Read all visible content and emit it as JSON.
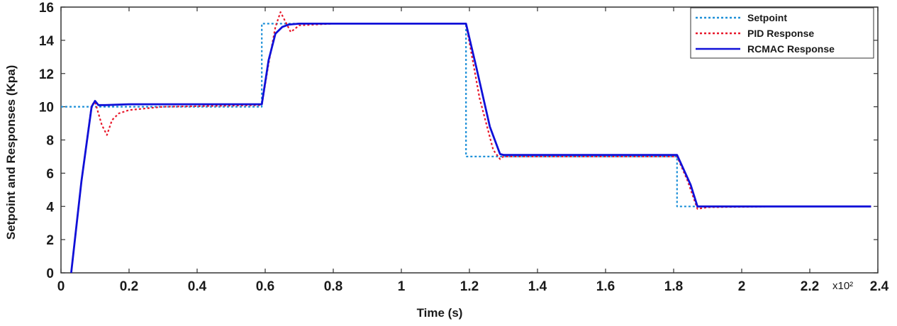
{
  "chart_data": {
    "type": "line",
    "title": "",
    "xlabel": "Time (s)",
    "ylabel": "Setpoint and Responses (Kpa)",
    "xlim": [
      0,
      2.4
    ],
    "ylim": [
      0,
      16
    ],
    "x_scale_label": "x10²",
    "x_ticks": [
      "0",
      "0.2",
      "0.4",
      "0.6",
      "0.8",
      "1",
      "1.2",
      "1.4",
      "1.6",
      "1.8",
      "2",
      "2.2",
      "2.4"
    ],
    "y_ticks": [
      "0",
      "2",
      "4",
      "6",
      "8",
      "10",
      "12",
      "14",
      "16"
    ],
    "grid": false,
    "legend_position": "top-right",
    "series": [
      {
        "name": "Setpoint",
        "color": "#1e90d8",
        "style": "dotted",
        "x": [
          0,
          0.59,
          0.59,
          1.19,
          1.19,
          1.81,
          1.81,
          2.38
        ],
        "y": [
          10,
          10,
          15,
          15,
          7,
          7,
          4,
          4
        ]
      },
      {
        "name": "PID Response",
        "color": "#e8192c",
        "style": "dotted",
        "x": [
          0.03,
          0.06,
          0.09,
          0.1,
          0.11,
          0.12,
          0.135,
          0.15,
          0.17,
          0.2,
          0.3,
          0.45,
          0.59,
          0.61,
          0.63,
          0.645,
          0.66,
          0.675,
          0.7,
          0.8,
          1.0,
          1.19,
          1.23,
          1.27,
          1.29,
          1.3,
          1.4,
          1.6,
          1.81,
          1.84,
          1.87,
          1.9,
          2.1,
          2.38
        ],
        "y": [
          0,
          5.5,
          10.1,
          10.3,
          9.6,
          8.9,
          8.3,
          9.2,
          9.6,
          9.8,
          10.0,
          10.05,
          10.1,
          12.6,
          14.8,
          15.7,
          15.1,
          14.5,
          14.9,
          15.0,
          15.0,
          15.0,
          10.5,
          7.4,
          6.85,
          7.0,
          7.0,
          7.0,
          7.0,
          5.6,
          3.85,
          3.95,
          4.0,
          4.0
        ]
      },
      {
        "name": "RCMAC Response",
        "color": "#1010d8",
        "style": "solid",
        "x": [
          0.03,
          0.06,
          0.09,
          0.1,
          0.11,
          0.13,
          0.2,
          0.4,
          0.59,
          0.61,
          0.63,
          0.65,
          0.67,
          0.7,
          0.8,
          1.0,
          1.19,
          1.22,
          1.26,
          1.29,
          1.3,
          1.4,
          1.6,
          1.81,
          1.85,
          1.87,
          1.9,
          2.1,
          2.38
        ],
        "y": [
          0,
          5.5,
          10.0,
          10.35,
          10.1,
          10.1,
          10.15,
          10.15,
          10.15,
          12.8,
          14.4,
          14.8,
          14.95,
          15.0,
          15.0,
          15.0,
          15.0,
          12.4,
          8.8,
          7.15,
          7.1,
          7.1,
          7.1,
          7.1,
          5.3,
          4.0,
          4.0,
          4.0,
          4.0
        ]
      }
    ]
  }
}
